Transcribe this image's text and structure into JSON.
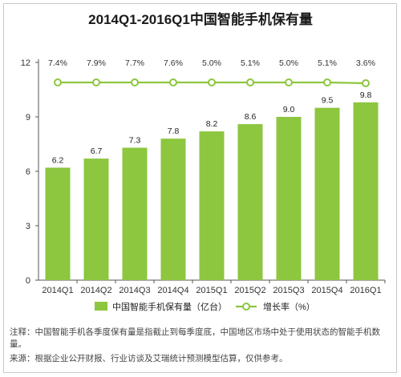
{
  "chart_data": {
    "type": "bar+line",
    "title": "2014Q1-2016Q1中国智能手机保有量",
    "categories": [
      "2014Q1",
      "2014Q2",
      "2014Q3",
      "2014Q4",
      "2015Q1",
      "2015Q2",
      "2015Q3",
      "2015Q4",
      "2016Q1"
    ],
    "series": [
      {
        "name": "中国智能手机保有量（亿台）",
        "type": "bar",
        "color": "#8dc63f",
        "values": [
          6.2,
          6.7,
          7.3,
          7.8,
          8.2,
          8.6,
          9.0,
          9.5,
          9.8
        ],
        "labels": [
          "6.2",
          "6.7",
          "7.3",
          "7.8",
          "8.2",
          "8.6",
          "9.0",
          "9.5",
          "9.8"
        ]
      },
      {
        "name": "增长率（%）",
        "type": "line",
        "color": "#8dc63f",
        "values": [
          7.4,
          7.9,
          7.7,
          7.6,
          5.0,
          5.1,
          5.0,
          5.1,
          3.6
        ],
        "labels": [
          "7.4%",
          "7.9%",
          "7.7%",
          "7.6%",
          "5.0%",
          "5.1%",
          "5.0%",
          "5.1%",
          "3.6%"
        ]
      }
    ],
    "yticks": [
      "0",
      "3",
      "6",
      "9",
      "12"
    ],
    "ylim": [
      0,
      12
    ],
    "grid": false,
    "legend_position": "bottom"
  },
  "notes": {
    "line1": "注释：中国智能手机各季度保有量是指截止到每季度底，中国地区市场中处于使用状态的智能手机数",
    "line2": "量。",
    "source": "来源：根据企业公开财报、行业访谈及艾瑞统计预测模型估算，仅供参考。"
  }
}
